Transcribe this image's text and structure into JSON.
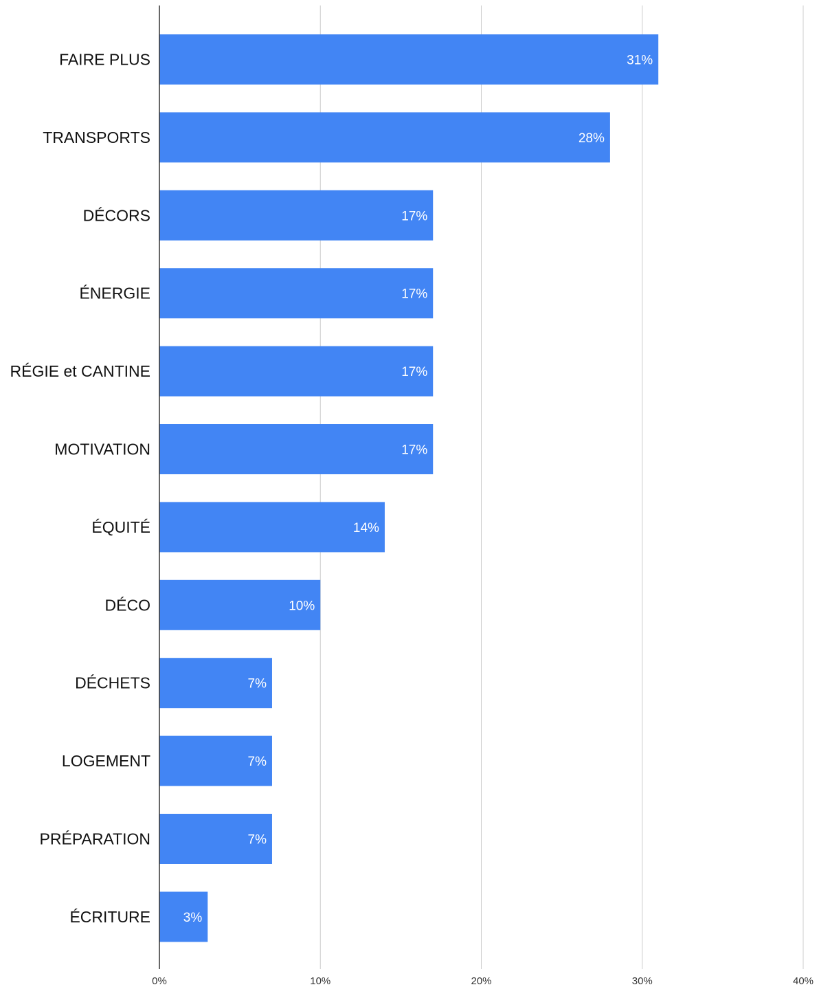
{
  "chart_data": {
    "type": "bar",
    "orientation": "horizontal",
    "title": "",
    "xlabel": "",
    "ylabel": "",
    "categories": [
      "FAIRE PLUS",
      "TRANSPORTS",
      "DÉCORS",
      "ÉNERGIE",
      "RÉGIE et CANTINE",
      "MOTIVATION",
      "ÉQUITÉ",
      "DÉCO",
      "DÉCHETS",
      "LOGEMENT",
      "PRÉPARATION",
      "ÉCRITURE"
    ],
    "values": [
      31,
      28,
      17,
      17,
      17,
      17,
      14,
      10,
      7,
      7,
      7,
      3
    ],
    "value_labels": [
      "31%",
      "28%",
      "17%",
      "17%",
      "17%",
      "17%",
      "14%",
      "10%",
      "7%",
      "7%",
      "7%",
      "3%"
    ],
    "xlim": [
      0,
      40
    ],
    "x_ticks": [
      0,
      10,
      20,
      30,
      40
    ],
    "x_tick_labels": [
      "0%",
      "10%",
      "20%",
      "30%",
      "40%"
    ],
    "grid": true,
    "legend": "none",
    "bar_color": "#4285f4"
  }
}
